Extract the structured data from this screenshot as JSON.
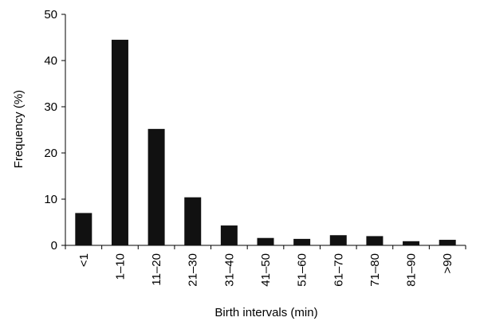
{
  "chart_data": {
    "type": "bar",
    "title": "",
    "xlabel": "Birth intervals (min)",
    "ylabel": "Frequency (%)",
    "ylim": [
      0,
      50
    ],
    "yticks": [
      0,
      10,
      20,
      30,
      40,
      50
    ],
    "grid": false,
    "legend": "none",
    "bar_color": "#111111",
    "categories": [
      "<1",
      "1–10",
      "11–20",
      "21–30",
      "31–40",
      "41–50",
      "51–60",
      "61–70",
      "71–80",
      "81–90",
      ">90"
    ],
    "values": [
      7.0,
      44.5,
      25.2,
      10.4,
      4.3,
      1.6,
      1.4,
      2.2,
      2.0,
      0.9,
      1.2
    ]
  }
}
